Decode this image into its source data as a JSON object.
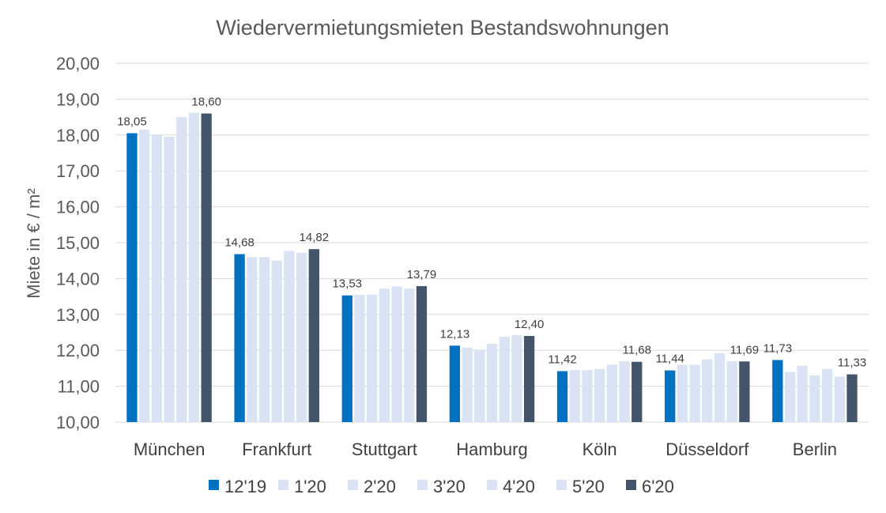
{
  "chart_data": {
    "type": "bar",
    "title": "Wiedervermietungsmieten Bestandswohnungen",
    "xlabel": "",
    "ylabel": "Miete in € / m²",
    "ylim": [
      10,
      20
    ],
    "yticks": [
      "10,00",
      "11,00",
      "12,00",
      "13,00",
      "14,00",
      "15,00",
      "16,00",
      "17,00",
      "18,00",
      "19,00",
      "20,00"
    ],
    "grid": true,
    "legend_position": "bottom",
    "categories": [
      "München",
      "Frankfurt",
      "Stuttgart",
      "Hamburg",
      "Köln",
      "Düsseldorf",
      "Berlin"
    ],
    "series": [
      {
        "name": "12'19",
        "color": "#0070c0",
        "values": [
          18.05,
          14.68,
          13.53,
          12.13,
          11.42,
          11.44,
          11.73
        ]
      },
      {
        "name": "1'20",
        "color": "#dae3f3",
        "values": [
          18.15,
          14.6,
          13.55,
          12.08,
          11.45,
          11.6,
          11.4
        ]
      },
      {
        "name": "2'20",
        "color": "#dae3f3",
        "values": [
          18.0,
          14.6,
          13.55,
          12.02,
          11.45,
          11.6,
          11.57
        ]
      },
      {
        "name": "3'20",
        "color": "#dae3f3",
        "values": [
          17.95,
          14.5,
          13.72,
          12.18,
          11.48,
          11.75,
          11.3
        ]
      },
      {
        "name": "4'20",
        "color": "#dae3f3",
        "values": [
          18.5,
          14.77,
          13.78,
          12.38,
          11.6,
          11.92,
          11.48
        ]
      },
      {
        "name": "5'20",
        "color": "#dae3f3",
        "values": [
          18.62,
          14.72,
          13.72,
          12.43,
          11.7,
          11.7,
          11.27
        ]
      },
      {
        "name": "6'20",
        "color": "#44546a",
        "values": [
          18.6,
          14.82,
          13.79,
          12.4,
          11.68,
          11.69,
          11.33
        ]
      }
    ],
    "data_labels": [
      [
        "18,05",
        "14,68",
        "13,53",
        "12,13",
        "11,42",
        "11,44",
        "11,73"
      ],
      [
        "",
        "",
        "",
        "",
        "",
        "",
        ""
      ],
      [
        "",
        "",
        "",
        "",
        "",
        "",
        ""
      ],
      [
        "",
        "",
        "",
        "",
        "",
        "",
        ""
      ],
      [
        "",
        "",
        "",
        "",
        "",
        "",
        ""
      ],
      [
        "",
        "",
        "",
        "",
        "",
        "",
        ""
      ],
      [
        "18,60",
        "14,82",
        "13,79",
        "12,40",
        "11,68",
        "11,69",
        "11,33"
      ]
    ]
  }
}
